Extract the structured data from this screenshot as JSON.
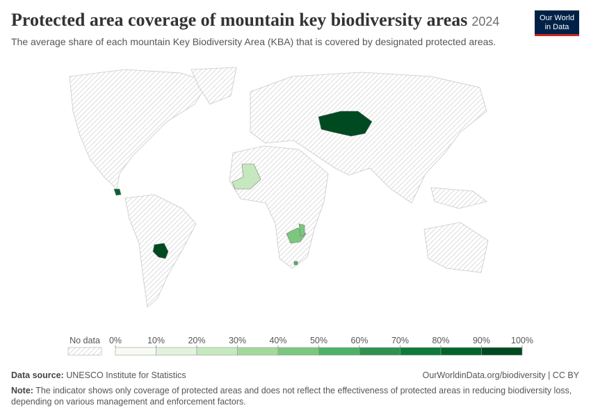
{
  "header": {
    "title": "Protected area coverage of mountain key biodiversity areas",
    "year": "2024",
    "subtitle": "The average share of each mountain Key Biodiversity Area (KBA) that is covered by designated protected areas.",
    "logo": [
      "Our World",
      "in Data"
    ]
  },
  "map": {
    "regions": [
      {
        "value": 95
      },
      {
        "value": 95
      },
      {
        "value": 88
      },
      {
        "value": 25
      },
      {
        "value": 45
      },
      {
        "value": 48
      },
      {
        "value": 55
      }
    ]
  },
  "legend": {
    "no_data": "No data",
    "ticks": [
      {
        "value": 0,
        "label": "0%"
      },
      {
        "value": 10,
        "label": "10%"
      },
      {
        "value": 20,
        "label": "20%"
      },
      {
        "value": 30,
        "label": "30%"
      },
      {
        "value": 40,
        "label": "40%"
      },
      {
        "value": 50,
        "label": "50%"
      },
      {
        "value": 60,
        "label": "60%"
      },
      {
        "value": 70,
        "label": "70%"
      },
      {
        "value": 80,
        "label": "80%"
      },
      {
        "value": 90,
        "label": "90%"
      },
      {
        "value": 100,
        "label": "100%"
      }
    ],
    "colors": [
      "#f7fbf3",
      "#e1f3dc",
      "#c6e8bf",
      "#a3d99b",
      "#7bc77e",
      "#4eb266",
      "#2f9150",
      "#0e7a3a",
      "#03632d",
      "#004a21"
    ]
  },
  "footer": {
    "source_label": "Data source:",
    "source": "UNESCO Institute for Statistics",
    "url": "OurWorldinData.org/biodiversity | CC BY",
    "note_label": "Note:",
    "note": "The indicator shows only coverage of protected areas and does not reflect the effectiveness of protected areas in reducing biodiversity loss, depending on various management and enforcement factors."
  }
}
